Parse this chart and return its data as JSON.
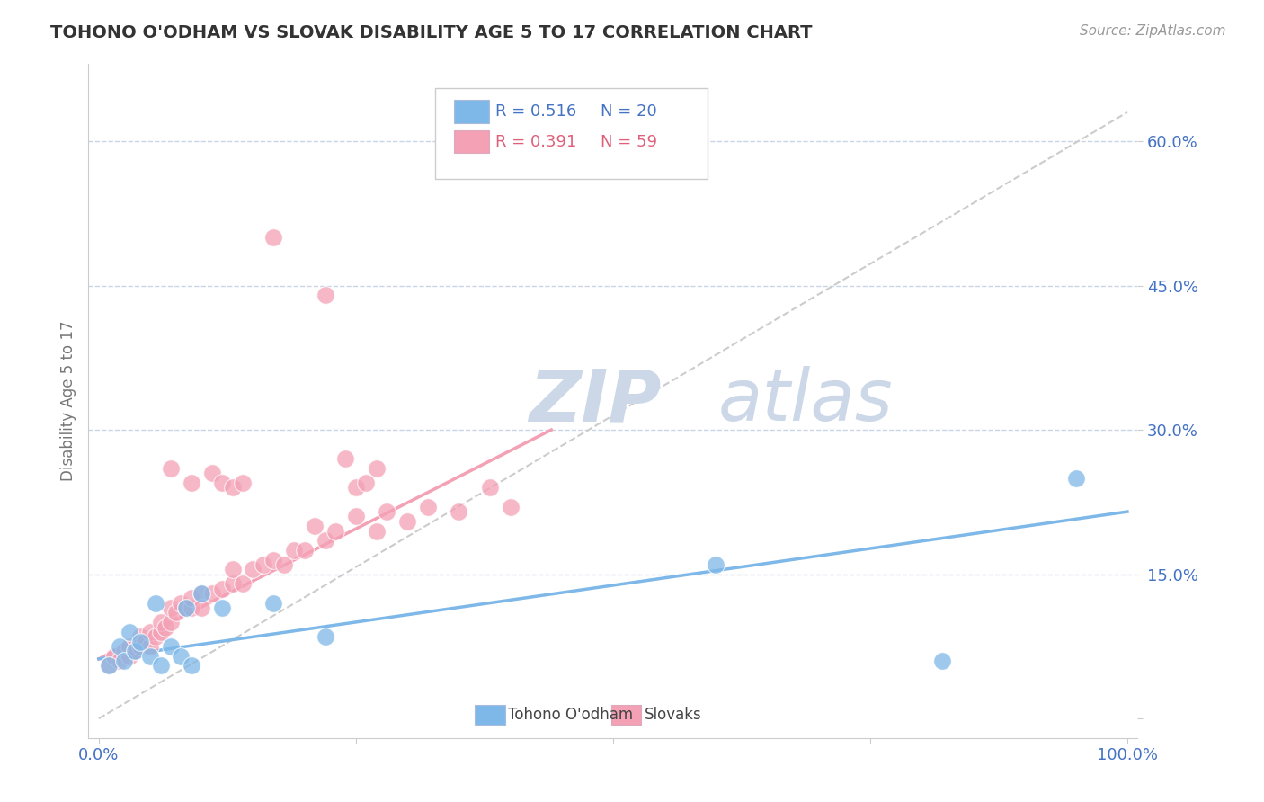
{
  "title": "TOHONO O'ODHAM VS SLOVAK DISABILITY AGE 5 TO 17 CORRELATION CHART",
  "source": "Source: ZipAtlas.com",
  "ylabel": "Disability Age 5 to 17",
  "xlim": [
    -0.01,
    1.01
  ],
  "ylim": [
    -0.02,
    0.68
  ],
  "yticks": [
    0.0,
    0.15,
    0.3,
    0.45,
    0.6
  ],
  "ytick_labels": [
    "",
    "15.0%",
    "30.0%",
    "45.0%",
    "60.0%"
  ],
  "xticks": [
    0.0,
    0.25,
    0.5,
    0.75,
    1.0
  ],
  "xtick_labels": [
    "0.0%",
    "",
    "",
    "",
    "100.0%"
  ],
  "blue_color": "#7eb8e8",
  "pink_color": "#f4a0b5",
  "ref_line_color": "#cccccc",
  "watermark_color": "#ccd8e8",
  "background_color": "#ffffff",
  "grid_color": "#c8d4e8",
  "legend_R_blue": "0.516",
  "legend_N_blue": "20",
  "legend_R_pink": "0.391",
  "legend_N_pink": "59",
  "blue_scatter_x": [
    0.01,
    0.02,
    0.025,
    0.03,
    0.035,
    0.04,
    0.05,
    0.055,
    0.06,
    0.07,
    0.08,
    0.085,
    0.09,
    0.1,
    0.12,
    0.17,
    0.22,
    0.6,
    0.82,
    0.95
  ],
  "blue_scatter_y": [
    0.055,
    0.075,
    0.06,
    0.09,
    0.07,
    0.08,
    0.065,
    0.12,
    0.055,
    0.075,
    0.065,
    0.115,
    0.055,
    0.13,
    0.115,
    0.12,
    0.085,
    0.16,
    0.06,
    0.25
  ],
  "pink_scatter_x": [
    0.01,
    0.015,
    0.02,
    0.025,
    0.03,
    0.03,
    0.035,
    0.04,
    0.04,
    0.045,
    0.05,
    0.05,
    0.055,
    0.06,
    0.06,
    0.065,
    0.07,
    0.07,
    0.075,
    0.08,
    0.085,
    0.09,
    0.09,
    0.1,
    0.1,
    0.11,
    0.12,
    0.13,
    0.13,
    0.14,
    0.15,
    0.16,
    0.17,
    0.18,
    0.19,
    0.2,
    0.21,
    0.22,
    0.23,
    0.25,
    0.27,
    0.28,
    0.3,
    0.32,
    0.35,
    0.38,
    0.4,
    0.17,
    0.22,
    0.24,
    0.25,
    0.27,
    0.07,
    0.09,
    0.11,
    0.12,
    0.13,
    0.14,
    0.26
  ],
  "pink_scatter_y": [
    0.055,
    0.065,
    0.06,
    0.07,
    0.065,
    0.075,
    0.07,
    0.075,
    0.085,
    0.08,
    0.075,
    0.09,
    0.085,
    0.09,
    0.1,
    0.095,
    0.1,
    0.115,
    0.11,
    0.12,
    0.115,
    0.115,
    0.125,
    0.13,
    0.115,
    0.13,
    0.135,
    0.14,
    0.155,
    0.14,
    0.155,
    0.16,
    0.165,
    0.16,
    0.175,
    0.175,
    0.2,
    0.185,
    0.195,
    0.21,
    0.195,
    0.215,
    0.205,
    0.22,
    0.215,
    0.24,
    0.22,
    0.5,
    0.44,
    0.27,
    0.24,
    0.26,
    0.26,
    0.245,
    0.255,
    0.245,
    0.24,
    0.245,
    0.245
  ],
  "blue_line_x0": 0.0,
  "blue_line_x1": 1.0,
  "blue_line_y0": 0.062,
  "blue_line_y1": 0.215,
  "pink_line_x0": 0.0,
  "pink_line_x1": 0.44,
  "pink_line_y0": 0.062,
  "pink_line_y1": 0.3,
  "ref_line_x0": 0.0,
  "ref_line_x1": 1.0,
  "ref_line_y0": 0.0,
  "ref_line_y1": 0.63
}
